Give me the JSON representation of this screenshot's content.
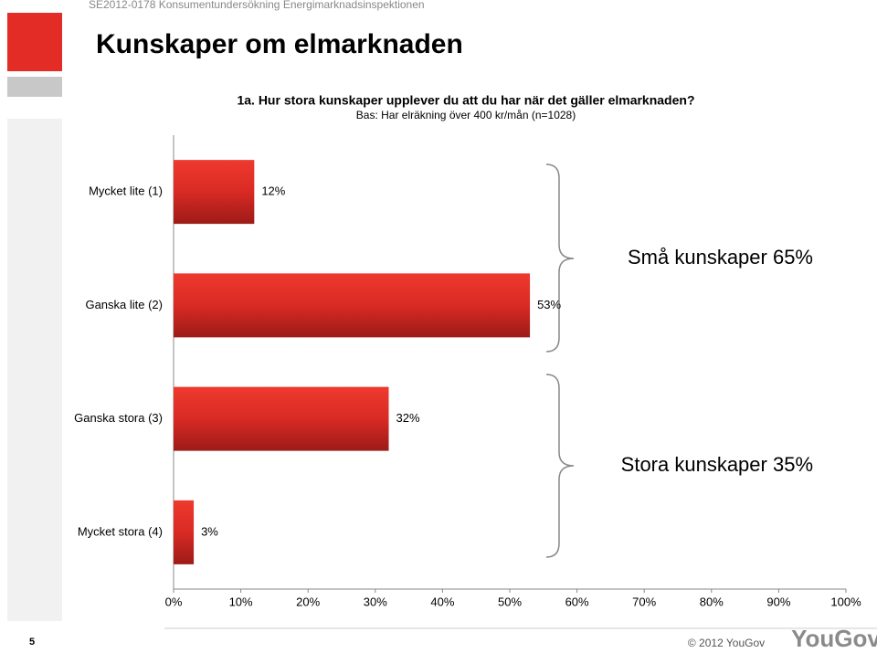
{
  "header": {
    "doc_id": "SE2012-0178 Konsumentundersökning Energimarknadsinspektionen",
    "title": "Kunskaper om elmarknaden"
  },
  "chart_data": {
    "type": "bar",
    "orientation": "horizontal",
    "title": "1a. Hur stora kunskaper upplever du att du har när det gäller elmarknaden?",
    "subtitle": "Bas: Har elräkning över 400 kr/mån (n=1028)",
    "categories": [
      "Mycket lite (1)",
      "Ganska lite (2)",
      "Ganska stora (3)",
      "Mycket stora (4)"
    ],
    "values": [
      12,
      53,
      32,
      3
    ],
    "value_labels": [
      "12%",
      "53%",
      "32%",
      "3%"
    ],
    "color": "#e32c26",
    "xlim": [
      0,
      100
    ],
    "xticks": [
      {
        "value": 0,
        "label": "0%"
      },
      {
        "value": 10,
        "label": "10%"
      },
      {
        "value": 20,
        "label": "20%"
      },
      {
        "value": 30,
        "label": "30%"
      },
      {
        "value": 40,
        "label": "40%"
      },
      {
        "value": 50,
        "label": "50%"
      },
      {
        "value": 60,
        "label": "60%"
      },
      {
        "value": 70,
        "label": "70%"
      },
      {
        "value": 80,
        "label": "80%"
      },
      {
        "value": 90,
        "label": "90%"
      },
      {
        "value": 100,
        "label": "100%"
      }
    ],
    "grid": false,
    "annotations": [
      "Små kunskaper 65%",
      "Stora kunskaper 35%"
    ]
  },
  "footer": {
    "page": "5",
    "copyright": "© 2012 YouGov",
    "logo": "YouGov"
  }
}
